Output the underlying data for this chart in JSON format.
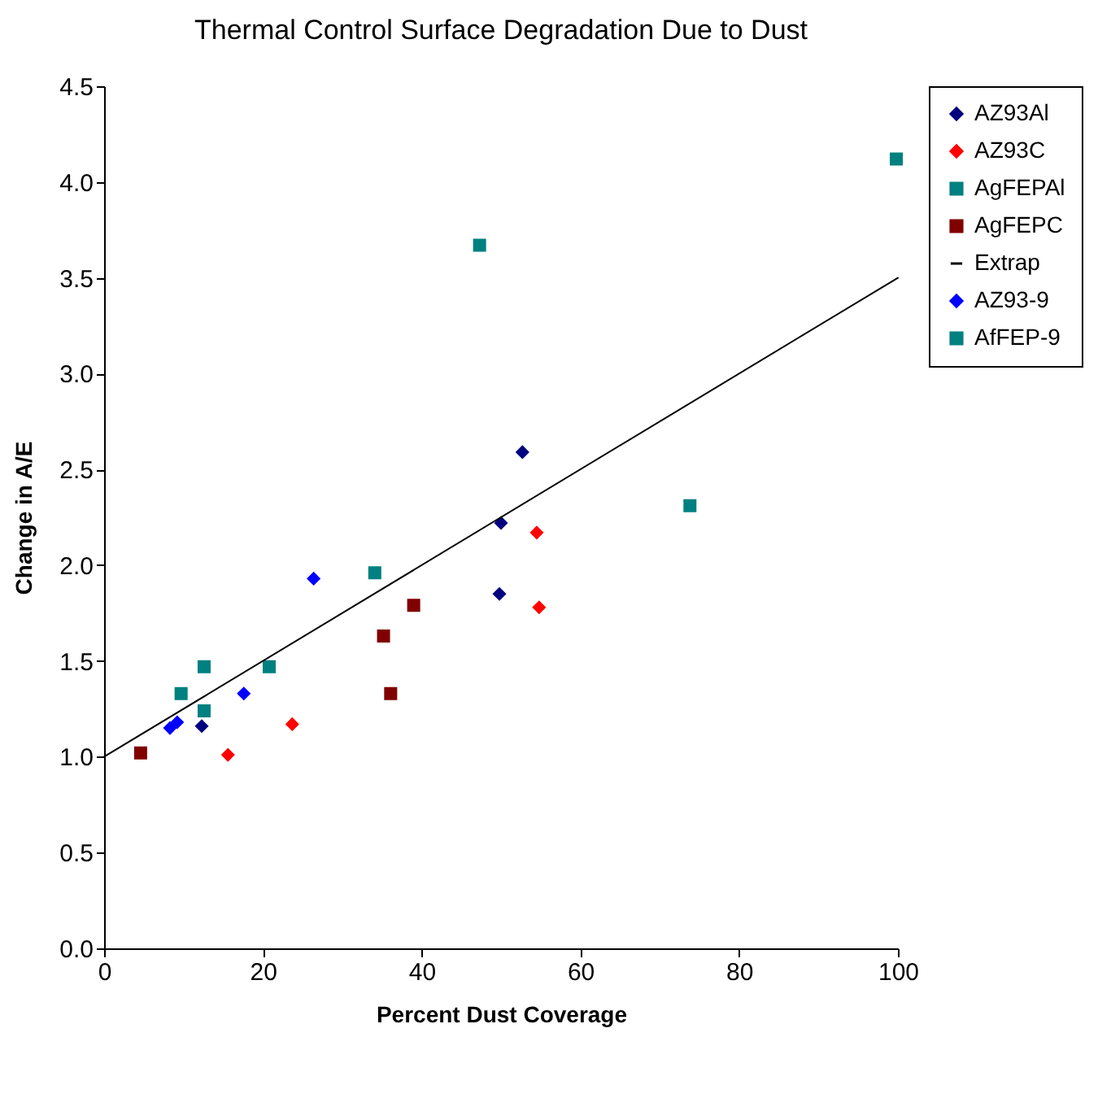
{
  "chart_data": {
    "type": "scatter",
    "title": "Thermal Control Surface Degradation Due to Dust",
    "xlabel": "Percent Dust Coverage",
    "ylabel": "Change in A/E",
    "xlim": [
      0,
      100
    ],
    "xticks": [
      0,
      20,
      40,
      60,
      80,
      100
    ],
    "ylim": [
      0,
      4.5
    ],
    "yticks": [
      {
        "value": 0,
        "label": "0.0"
      },
      {
        "value": 0.5,
        "label": "0.5"
      },
      {
        "value": 1,
        "label": "1.0"
      },
      {
        "value": 1.5,
        "label": "1.5"
      },
      {
        "value": 2,
        "label": "2.0"
      },
      {
        "value": 2.5,
        "label": "2.5"
      },
      {
        "value": 3,
        "label": "3.0"
      },
      {
        "value": 3.5,
        "label": "3.5"
      },
      {
        "value": 4,
        "label": "4.0"
      },
      {
        "value": 4.5,
        "label": "4.5"
      }
    ],
    "grid": false,
    "legend": "right",
    "series": [
      {
        "name": "AZ93Al",
        "color": "#000080",
        "marker": "diamond",
        "x": [
          12.3,
          50,
          52.7,
          49.8
        ],
        "values": [
          1.16,
          2.22,
          2.59,
          1.85
        ]
      },
      {
        "name": "AZ93C",
        "color": "#ff0000",
        "marker": "diamond",
        "x": [
          15.6,
          23.7,
          54.5,
          54.8
        ],
        "values": [
          1.01,
          1.17,
          2.17,
          1.78
        ]
      },
      {
        "name": "AgFEPAl",
        "color": "#008080",
        "marker": "square",
        "x": [
          12.6,
          12.6,
          20.8,
          47.3
        ],
        "values": [
          1.47,
          1.24,
          1.47,
          3.67
        ]
      },
      {
        "name": "AgFEPC",
        "color": "#800000",
        "marker": "square",
        "x": [
          4.6,
          39,
          35.2,
          36.1
        ],
        "values": [
          1.02,
          1.79,
          1.63,
          1.33
        ]
      },
      {
        "name": "Extrap",
        "type": "line",
        "color": "#000000",
        "marker": "none",
        "x": [
          0,
          100
        ],
        "values": [
          1,
          3.5
        ]
      },
      {
        "name": "AZ93-9",
        "color": "#0000ff",
        "marker": "diamond",
        "x": [
          8.3,
          9.2,
          17.6,
          26.4
        ],
        "values": [
          1.15,
          1.18,
          1.33,
          1.93
        ]
      },
      {
        "name": "AfFEP-9",
        "color": "#008080",
        "marker": "square",
        "x": [
          9.7,
          34.1,
          73.8,
          99.8
        ],
        "values": [
          1.33,
          1.96,
          2.31,
          4.12
        ]
      }
    ]
  }
}
